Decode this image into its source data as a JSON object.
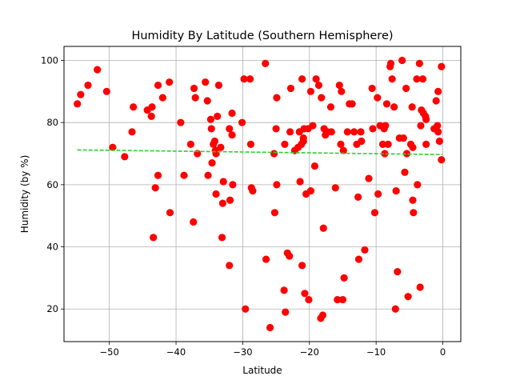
{
  "chart_data": {
    "type": "scatter",
    "title": "Humidity By Latitude (Southern Hemisphere)",
    "xlabel": "Latitude",
    "ylabel": "Humidity (by %)",
    "xlim": [
      -56.8,
      2.7
    ],
    "ylim": [
      9.5,
      104.5
    ],
    "xticks": [
      -50,
      -40,
      -30,
      -20,
      -10,
      0
    ],
    "yticks": [
      20,
      40,
      60,
      80,
      100
    ],
    "grid": true,
    "point_color": "#ff0000",
    "regression_color": "#32cd32",
    "regression": {
      "x_start": -54.8,
      "y_start": 71.2,
      "x_end": -0.1,
      "y_end": 69.7
    },
    "points": [
      [
        -54.8,
        86
      ],
      [
        -54.3,
        89
      ],
      [
        -53.2,
        92
      ],
      [
        -51.8,
        97
      ],
      [
        -50.4,
        90
      ],
      [
        -49.5,
        72
      ],
      [
        -47.7,
        69
      ],
      [
        -46.6,
        77
      ],
      [
        -46.4,
        85
      ],
      [
        -44.3,
        84
      ],
      [
        -43.7,
        82
      ],
      [
        -43.6,
        85
      ],
      [
        -43.4,
        43
      ],
      [
        -43.1,
        59
      ],
      [
        -42.7,
        63
      ],
      [
        -42.7,
        92
      ],
      [
        -42.0,
        88
      ],
      [
        -41.0,
        93
      ],
      [
        -40.9,
        51
      ],
      [
        -39.3,
        80
      ],
      [
        -38.8,
        63
      ],
      [
        -37.8,
        73
      ],
      [
        -37.4,
        48
      ],
      [
        -37.3,
        91
      ],
      [
        -37.1,
        88
      ],
      [
        -36.8,
        70
      ],
      [
        -35.6,
        93
      ],
      [
        -35.3,
        87
      ],
      [
        -35.2,
        63
      ],
      [
        -34.8,
        81
      ],
      [
        -34.7,
        78
      ],
      [
        -34.6,
        67
      ],
      [
        -34.4,
        73
      ],
      [
        -34.2,
        74
      ],
      [
        -34.1,
        71
      ],
      [
        -34.0,
        70
      ],
      [
        -34.0,
        57
      ],
      [
        -33.8,
        82
      ],
      [
        -33.6,
        92
      ],
      [
        -33.3,
        72
      ],
      [
        -33.1,
        43
      ],
      [
        -33.0,
        54
      ],
      [
        -32.9,
        61
      ],
      [
        -32.0,
        78
      ],
      [
        -32.0,
        34
      ],
      [
        -31.9,
        55
      ],
      [
        -31.6,
        83
      ],
      [
        -31.6,
        76
      ],
      [
        -31.5,
        60
      ],
      [
        -30.1,
        80
      ],
      [
        -29.8,
        94
      ],
      [
        -29.6,
        20
      ],
      [
        -28.9,
        94
      ],
      [
        -28.8,
        73
      ],
      [
        -28.7,
        59
      ],
      [
        -28.5,
        58
      ],
      [
        -26.6,
        99
      ],
      [
        -26.5,
        36
      ],
      [
        -25.9,
        14
      ],
      [
        -25.3,
        70
      ],
      [
        -25.2,
        51
      ],
      [
        -25.0,
        78
      ],
      [
        -24.9,
        88
      ],
      [
        -24.9,
        60
      ],
      [
        -23.8,
        26
      ],
      [
        -23.7,
        73
      ],
      [
        -23.6,
        19
      ],
      [
        -23.3,
        38
      ],
      [
        -23.0,
        37
      ],
      [
        -22.9,
        77
      ],
      [
        -22.8,
        91
      ],
      [
        -22.2,
        71
      ],
      [
        -21.7,
        72
      ],
      [
        -21.5,
        77
      ],
      [
        -21.4,
        61
      ],
      [
        -21.2,
        73
      ],
      [
        -21.1,
        94
      ],
      [
        -21.1,
        34
      ],
      [
        -20.9,
        74
      ],
      [
        -20.9,
        75
      ],
      [
        -20.8,
        78
      ],
      [
        -20.7,
        25
      ],
      [
        -20.5,
        57
      ],
      [
        -20.2,
        78
      ],
      [
        -20.1,
        23
      ],
      [
        -19.8,
        90
      ],
      [
        -19.8,
        58
      ],
      [
        -19.5,
        79
      ],
      [
        -19.2,
        66
      ],
      [
        -19.0,
        94
      ],
      [
        -18.6,
        92
      ],
      [
        -18.3,
        17
      ],
      [
        -18.2,
        88
      ],
      [
        -18.0,
        18
      ],
      [
        -17.9,
        46
      ],
      [
        -17.8,
        78
      ],
      [
        -17.6,
        76
      ],
      [
        -17.3,
        77
      ],
      [
        -16.8,
        85
      ],
      [
        -16.7,
        77
      ],
      [
        -16.1,
        59
      ],
      [
        -15.8,
        23
      ],
      [
        -15.5,
        92
      ],
      [
        -15.3,
        73
      ],
      [
        -15.2,
        90
      ],
      [
        -15.0,
        23
      ],
      [
        -14.9,
        71
      ],
      [
        -14.8,
        30
      ],
      [
        -14.3,
        77
      ],
      [
        -14.0,
        86
      ],
      [
        -13.6,
        86
      ],
      [
        -13.3,
        77
      ],
      [
        -12.9,
        73
      ],
      [
        -12.7,
        56
      ],
      [
        -12.6,
        36
      ],
      [
        -12.3,
        77
      ],
      [
        -12.2,
        74
      ],
      [
        -11.7,
        39
      ],
      [
        -11.1,
        62
      ],
      [
        -10.6,
        91
      ],
      [
        -10.5,
        78
      ],
      [
        -10.2,
        51
      ],
      [
        -9.8,
        88
      ],
      [
        -9.7,
        57
      ],
      [
        -9.4,
        79
      ],
      [
        -9.0,
        73
      ],
      [
        -8.8,
        78
      ],
      [
        -8.7,
        70
      ],
      [
        -8.6,
        79
      ],
      [
        -8.4,
        86
      ],
      [
        -8.2,
        73
      ],
      [
        -7.9,
        98
      ],
      [
        -7.8,
        99
      ],
      [
        -7.6,
        94
      ],
      [
        -7.3,
        85
      ],
      [
        -7.1,
        20
      ],
      [
        -7.0,
        58
      ],
      [
        -6.8,
        32
      ],
      [
        -6.5,
        75
      ],
      [
        -6.1,
        100
      ],
      [
        -5.9,
        75
      ],
      [
        -5.7,
        64
      ],
      [
        -5.5,
        91
      ],
      [
        -5.4,
        70
      ],
      [
        -5.2,
        24
      ],
      [
        -4.8,
        73
      ],
      [
        -4.6,
        85
      ],
      [
        -4.5,
        72
      ],
      [
        -4.5,
        55
      ],
      [
        -4.4,
        51
      ],
      [
        -3.9,
        94
      ],
      [
        -3.8,
        60
      ],
      [
        -3.5,
        99
      ],
      [
        -3.4,
        27
      ],
      [
        -3.3,
        79
      ],
      [
        -3.2,
        84
      ],
      [
        -3.0,
        94
      ],
      [
        -2.9,
        83
      ],
      [
        -2.6,
        82
      ],
      [
        -2.5,
        81
      ],
      [
        -2.5,
        73
      ],
      [
        -1.3,
        78
      ],
      [
        -1.0,
        87
      ],
      [
        -0.8,
        79
      ],
      [
        -0.7,
        90
      ],
      [
        -0.7,
        77
      ],
      [
        -0.5,
        74
      ],
      [
        -0.2,
        98
      ],
      [
        -0.2,
        68
      ]
    ]
  }
}
